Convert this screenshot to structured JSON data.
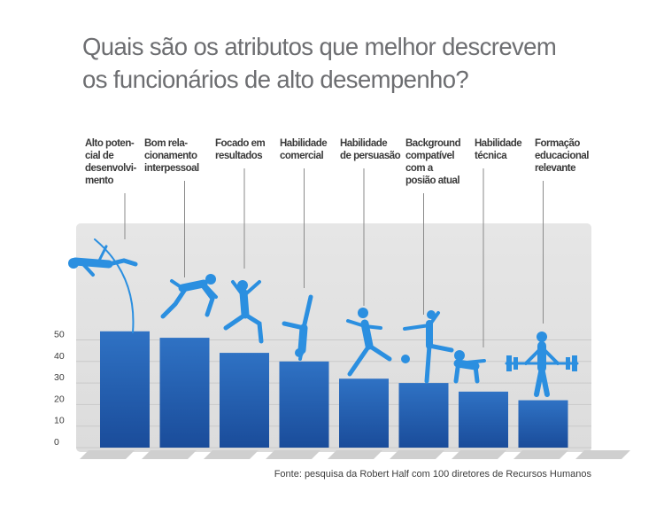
{
  "title": {
    "line1": "Quais são os atributos que melhor descrevem",
    "line2": "os funcionários de alto desempenho?"
  },
  "source": "Fonte: pesquisa da Robert Half com 100 diretores de Recursos Humanos",
  "colors": {
    "bar_top": "#2f72c4",
    "bar_bottom": "#1a4c9a",
    "athlete": "#2b8fe0",
    "panel": "#e2e2e2",
    "gridline": "#c9c9c9",
    "label_text": "#3a3a3a",
    "title_text": "#6d6e71"
  },
  "chart_data": {
    "type": "bar",
    "title": "",
    "xlabel": "",
    "ylabel": "",
    "ylim": [
      0,
      60
    ],
    "yticks": [
      0,
      10,
      20,
      30,
      40,
      50
    ],
    "grid": true,
    "categories": [
      [
        "Alto poten-",
        "cial de",
        "desenvolvi-",
        "mento"
      ],
      [
        "Bom rela-",
        "cionamento",
        "interpessoal"
      ],
      [
        "Focado em",
        "resultados"
      ],
      [
        "Habilidade",
        "comercial"
      ],
      [
        "Habilidade",
        "de persuasão"
      ],
      [
        "Background",
        "compatível",
        "com a",
        "posião atual"
      ],
      [
        "Habilidade",
        "técnica"
      ],
      [
        "Formação",
        "educacional",
        "relevante"
      ]
    ],
    "values": [
      54,
      51,
      44,
      40,
      32,
      30,
      26,
      22
    ],
    "athletes": [
      "pole-vaulter-icon",
      "sprinter-icon",
      "jumper-icon",
      "handstand-gymnast-icon",
      "soccer-kicker-icon",
      "ballet-dancer-icon",
      "crouching-skier-icon",
      "weightlifter-icon"
    ]
  }
}
